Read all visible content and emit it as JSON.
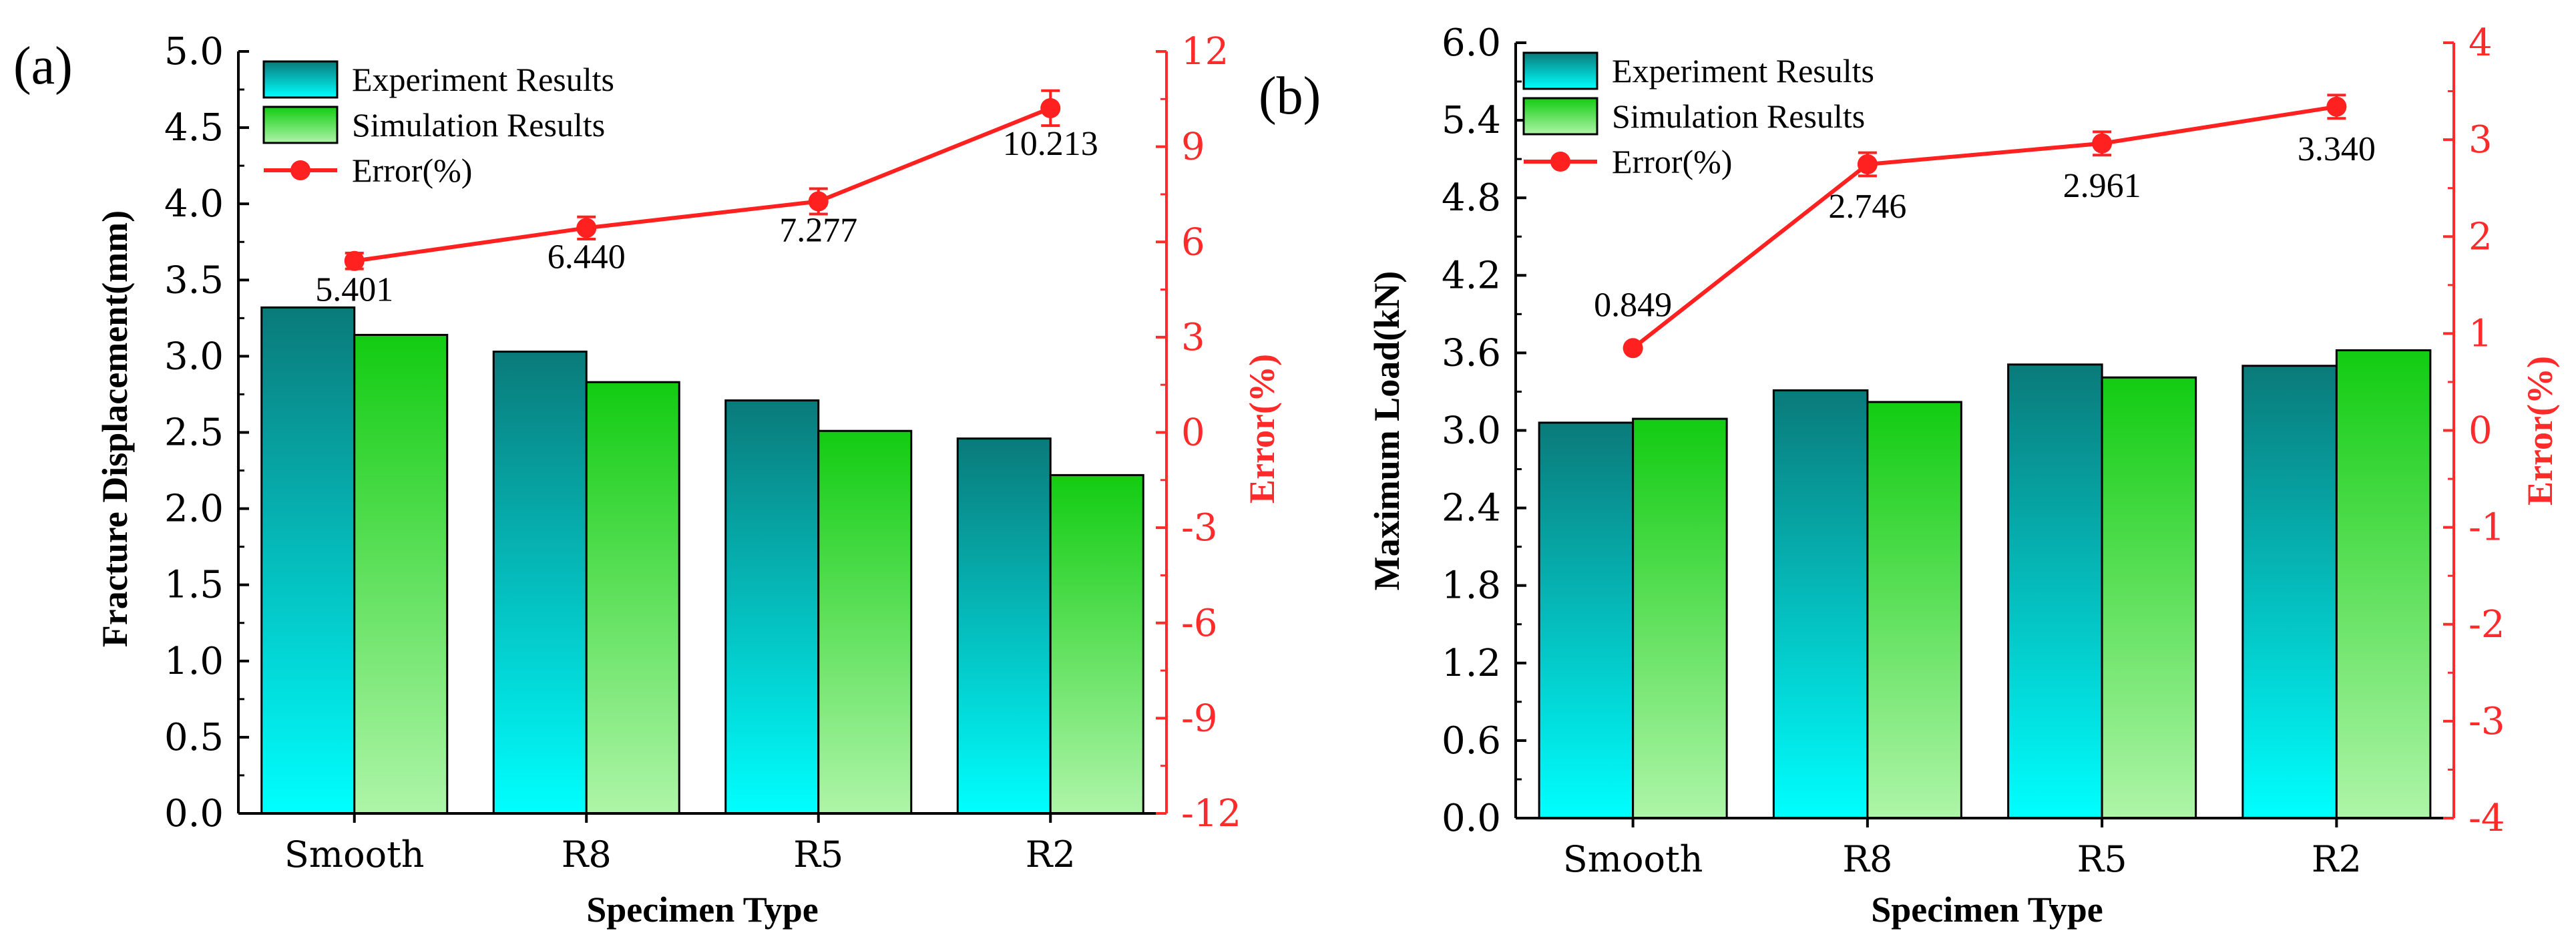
{
  "chart_data": [
    {
      "type": "bar",
      "panel_label": "(a)",
      "categories": [
        "Smooth",
        "R8",
        "R5",
        "R2"
      ],
      "xlabel": "Specimen Type",
      "ylabel": "Fracture Displacement(mm)",
      "ylabel_right": "Error(%)",
      "ylim": [
        0,
        5.0
      ],
      "yticks": [
        "0.0",
        "0.5",
        "1.0",
        "1.5",
        "2.0",
        "2.5",
        "3.0",
        "3.5",
        "4.0",
        "4.5",
        "5.0"
      ],
      "ylim_right": [
        -12,
        12
      ],
      "yticks_right": [
        "-12",
        "-9",
        "-6",
        "-3",
        "0",
        "3",
        "6",
        "9",
        "12"
      ],
      "series": [
        {
          "name": "Experiment Results",
          "values": [
            3.32,
            3.03,
            2.71,
            2.46
          ]
        },
        {
          "name": "Simulation Results",
          "values": [
            3.14,
            2.83,
            2.51,
            2.22
          ]
        }
      ],
      "line_series": {
        "name": "Error(%)",
        "values": [
          5.401,
          6.44,
          7.277,
          10.213
        ],
        "error": [
          0.25,
          0.35,
          0.4,
          0.55
        ],
        "labels": [
          "5.401",
          "6.440",
          "7.277",
          "10.213"
        ]
      },
      "legend_position": "top-left"
    },
    {
      "type": "bar",
      "panel_label": "(b)",
      "categories": [
        "Smooth",
        "R8",
        "R5",
        "R2"
      ],
      "xlabel": "Specimen Type",
      "ylabel": "Maximum Load(kN)",
      "ylabel_right": "Error(%)",
      "ylim": [
        0,
        6.0
      ],
      "yticks": [
        "0.0",
        "0.6",
        "1.2",
        "1.8",
        "2.4",
        "3.0",
        "3.6",
        "4.2",
        "4.8",
        "5.4",
        "6.0"
      ],
      "ylim_right": [
        -4,
        4
      ],
      "yticks_right": [
        "-4",
        "-3",
        "-2",
        "-1",
        "0",
        "1",
        "2",
        "3",
        "4"
      ],
      "series": [
        {
          "name": "Experiment Results",
          "values": [
            3.06,
            3.31,
            3.51,
            3.5
          ]
        },
        {
          "name": "Simulation Results",
          "values": [
            3.09,
            3.22,
            3.41,
            3.62
          ]
        }
      ],
      "line_series": {
        "name": "Error(%)",
        "values": [
          0.849,
          2.746,
          2.961,
          3.34
        ],
        "error": [
          0.0,
          0.12,
          0.12,
          0.12
        ],
        "labels": [
          "0.849",
          "2.746",
          "2.961",
          "3.340"
        ]
      },
      "legend_position": "top-left"
    }
  ],
  "colors": {
    "experiment_top": "#0a7a7a",
    "experiment_bottom": "#00ffff",
    "simulation_top": "#12cc12",
    "simulation_bottom": "#aef5a8",
    "error_line": "#ff2020",
    "right_axis": "#ff2a2a"
  }
}
